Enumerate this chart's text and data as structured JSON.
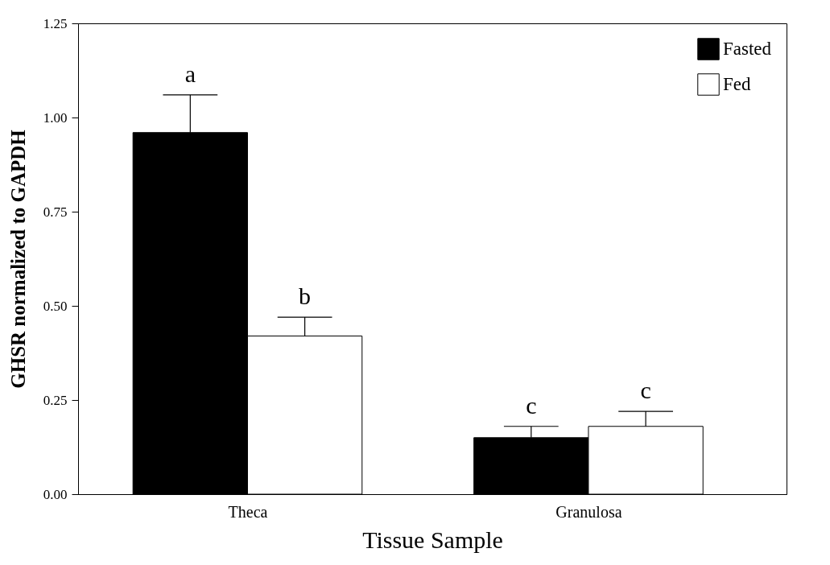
{
  "chart_data": {
    "type": "bar",
    "xlabel": "Tissue Sample",
    "ylabel": "GHSR normalized to GAPDH",
    "categories": [
      "Theca",
      "Granulosa"
    ],
    "series": [
      {
        "name": "Fasted",
        "color": "#000000",
        "values": [
          0.96,
          0.15
        ],
        "errors": [
          0.1,
          0.03
        ]
      },
      {
        "name": "Fed",
        "color": "#ffffff",
        "values": [
          0.42,
          0.18
        ],
        "errors": [
          0.05,
          0.04
        ]
      }
    ],
    "ylim": [
      0,
      1.25
    ],
    "yticks": [
      {
        "value": 0,
        "label": "0.00"
      },
      {
        "value": 0.25,
        "label": "0.25"
      },
      {
        "value": 0.5,
        "label": "0.50"
      },
      {
        "value": 0.75,
        "label": "0.75"
      },
      {
        "value": 1,
        "label": "1.00"
      },
      {
        "value": 1.25,
        "label": "1.25"
      }
    ],
    "annotations": [
      "a",
      "b",
      "c",
      "c"
    ],
    "grid": false,
    "legend": "top right"
  }
}
